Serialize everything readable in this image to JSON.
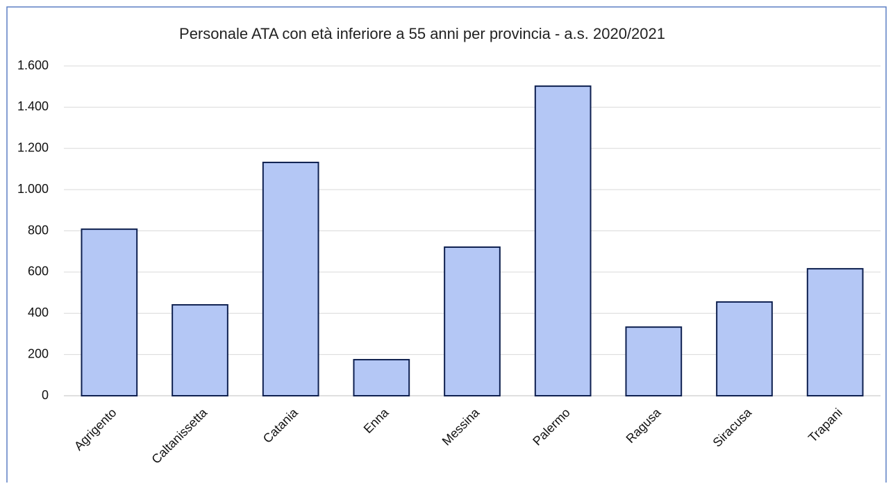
{
  "chart_data": {
    "type": "bar",
    "title": "Personale ATA con età inferiore a 55 anni per provincia - a.s. 2020/2021",
    "categories": [
      "Agrigento",
      "Caltanissetta",
      "Catania",
      "Enna",
      "Messina",
      "Palermo",
      "Ragusa",
      "Siracusa",
      "Trapani"
    ],
    "values": [
      808,
      441,
      1132,
      175,
      721,
      1502,
      333,
      455,
      616
    ],
    "color": "#b4c7f5",
    "edge_color": "#0d1f4f",
    "ylim": [
      0,
      1600
    ],
    "yticks": [
      0,
      200,
      400,
      600,
      800,
      {
        "value": 1000,
        "label": "1.000"
      },
      {
        "value": 1200,
        "label": "1.200"
      },
      {
        "value": 1400,
        "label": "1.400"
      },
      {
        "value": 1600,
        "label": "1.600"
      }
    ],
    "grid": true
  }
}
